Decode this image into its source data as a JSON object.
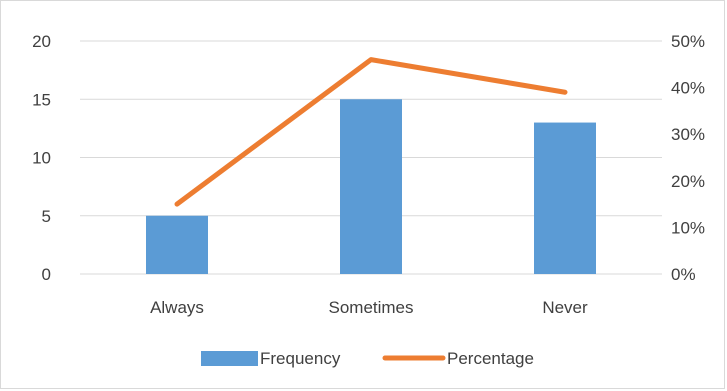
{
  "chart_data": {
    "type": "bar",
    "categories": [
      "Always",
      "Sometimes",
      "Never"
    ],
    "series": [
      {
        "name": "Frequency",
        "type": "bar",
        "axis": "left",
        "values": [
          5,
          15,
          13
        ],
        "color": "#5b9bd5"
      },
      {
        "name": "Percentage",
        "type": "line",
        "axis": "right",
        "values": [
          15,
          46,
          39
        ],
        "color": "#ed7d31"
      }
    ],
    "y_left": {
      "min": 0,
      "max": 20,
      "ticks": [
        0,
        5,
        10,
        15,
        20
      ],
      "tick_labels": [
        "0",
        "5",
        "10",
        "15",
        "20"
      ]
    },
    "y_right": {
      "min": 0,
      "max": 50,
      "ticks": [
        0,
        10,
        20,
        30,
        40,
        50
      ],
      "tick_labels": [
        "0%",
        "10%",
        "20%",
        "30%",
        "40%",
        "50%"
      ]
    },
    "grid": true,
    "legend_position": "bottom",
    "gridline_color": "#d9d9d9"
  }
}
